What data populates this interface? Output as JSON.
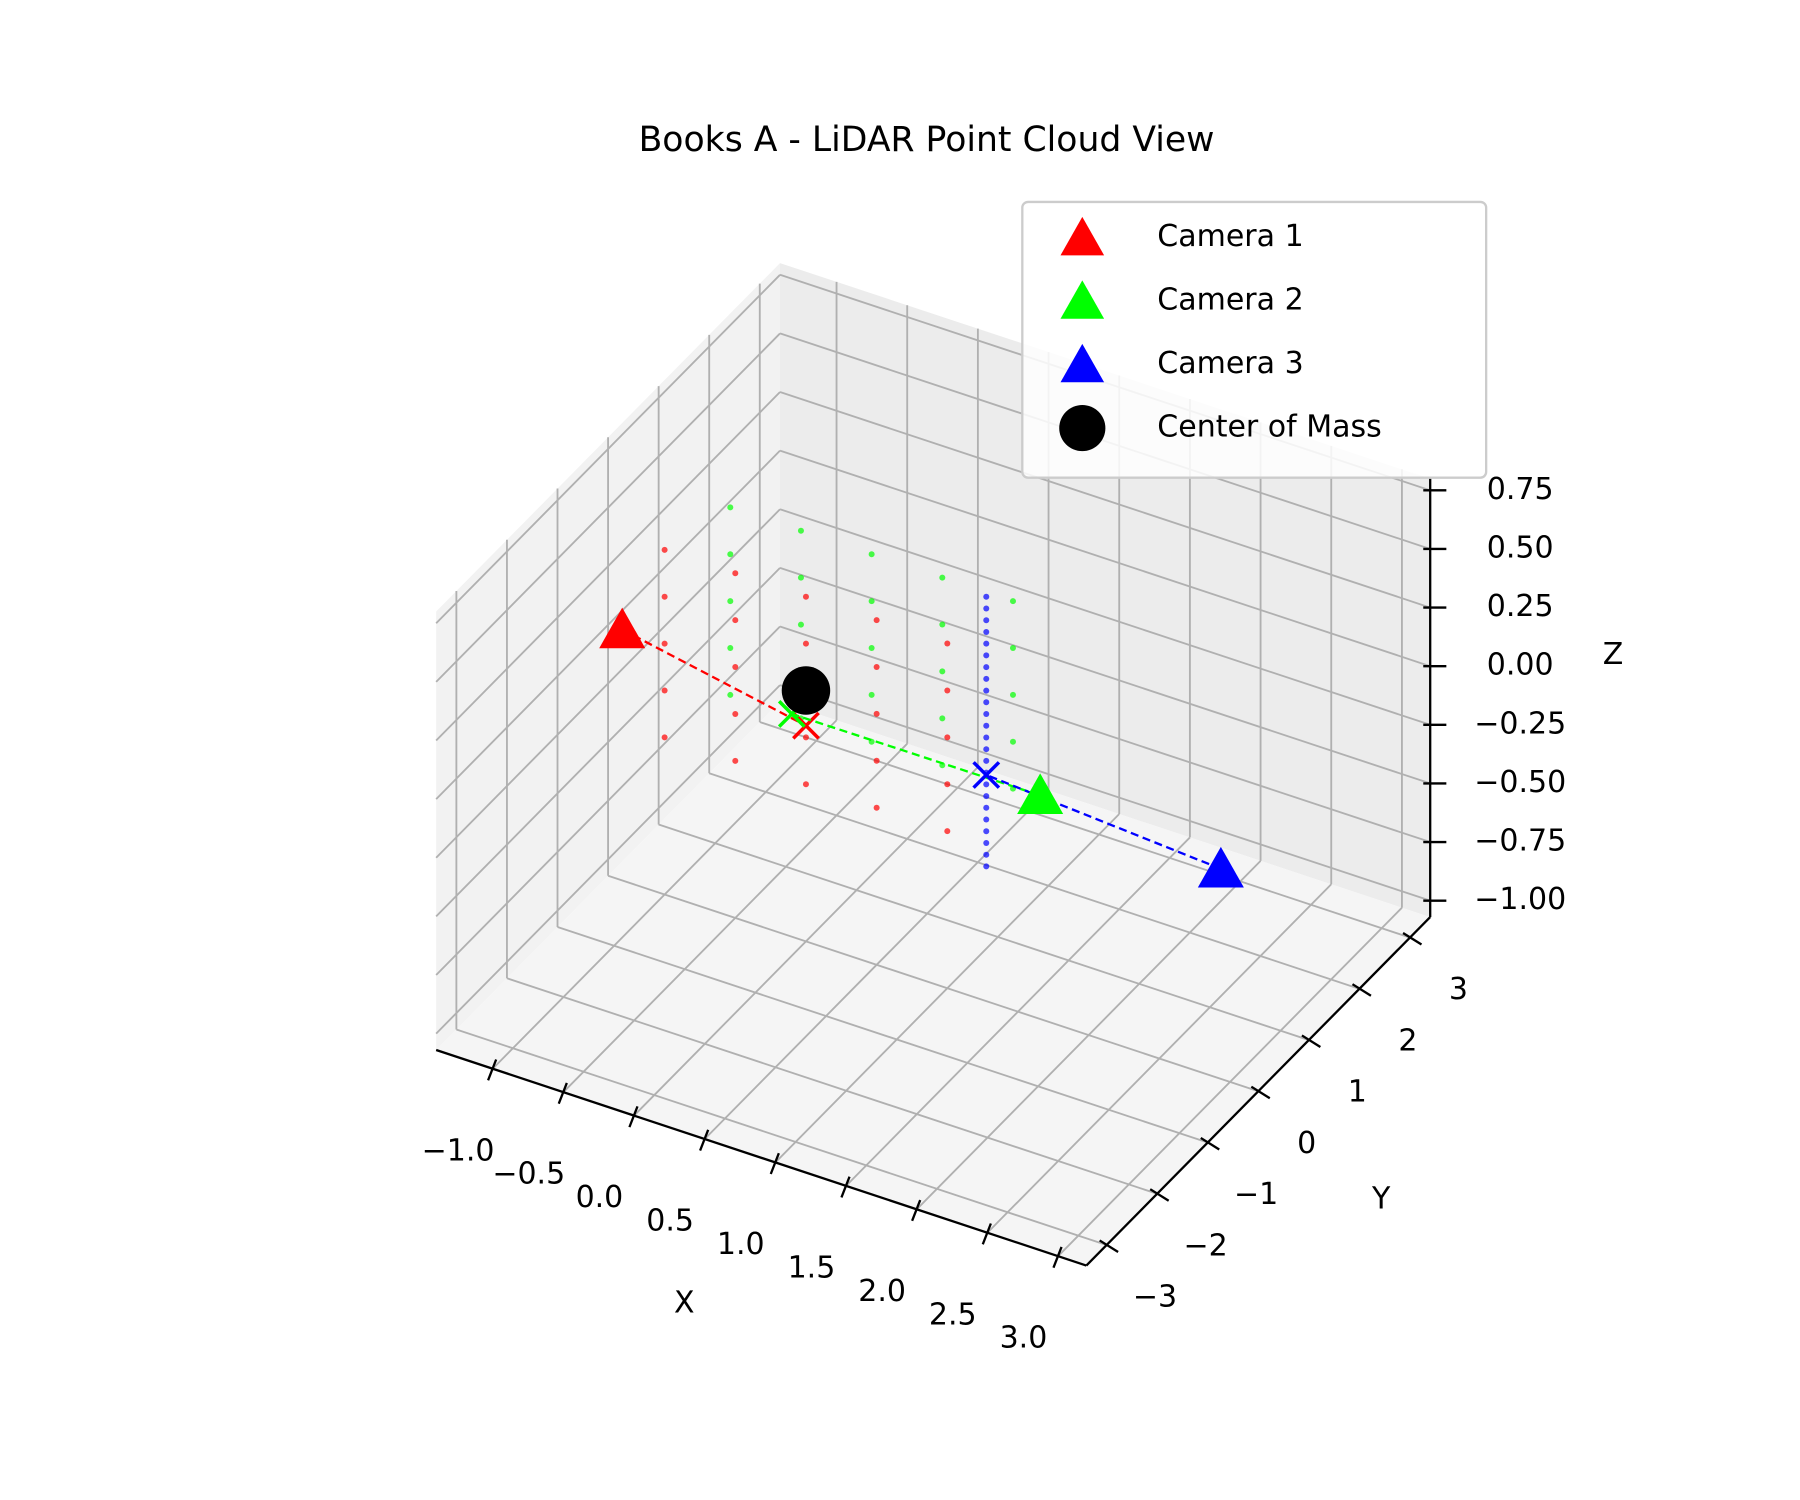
{
  "chart_data": {
    "type": "scatter3d",
    "title": "Books A - LiDAR Point Cloud View",
    "xlabel": "X",
    "ylabel": "Y",
    "zlabel": "Z",
    "xlim": [
      -1.4,
      3.2
    ],
    "ylim": [
      -3.4,
      3.4
    ],
    "zlim": [
      -1.07,
      0.8
    ],
    "xticks": [
      {
        "value": -1,
        "label": "−1.0"
      },
      {
        "value": -0.5,
        "label": "−0.5"
      },
      {
        "value": 0,
        "label": "0.0"
      },
      0.5,
      {
        "value": 1,
        "label": "1.0"
      },
      1.5,
      {
        "value": 2,
        "label": "2.0"
      },
      2.5,
      {
        "value": 3,
        "label": "3.0"
      }
    ],
    "yticks": [
      {
        "value": -3,
        "label": "−3"
      },
      {
        "value": -2,
        "label": "−2"
      },
      {
        "value": -1,
        "label": "−1"
      },
      0,
      1,
      2,
      3
    ],
    "zticks": [
      {
        "value": -1,
        "label": "−1.00"
      },
      {
        "value": -0.75,
        "label": "−0.75"
      },
      {
        "value": -0.5,
        "label": "−0.50"
      },
      {
        "value": -0.25,
        "label": "−0.25"
      },
      {
        "value": 0,
        "label": "0.00"
      },
      {
        "value": 0.25,
        "label": "0.25"
      },
      {
        "value": 0.5,
        "label": "0.50"
      },
      0.75
    ],
    "grid": true,
    "legend": "upper right",
    "series": [
      {
        "name": "Camera 1",
        "color": "#ff0000",
        "marker": "triangle",
        "x": [
          -1.3
        ],
        "y": [
          0
        ],
        "z": [
          0
        ],
        "hit": {
          "x": 0,
          "y": 0,
          "z": -0.15
        }
      },
      {
        "name": "Camera 2",
        "color": "#00ff00",
        "marker": "triangle",
        "x": [
          1.8
        ],
        "y": [
          -0.4
        ],
        "z": [
          0
        ],
        "hit": {
          "x": -0.1,
          "y": 0,
          "z": -0.12
        }
      },
      {
        "name": "Camera 3",
        "color": "#0000ff",
        "marker": "triangle",
        "x": [
          3.15
        ],
        "y": [
          -0.6
        ],
        "z": [
          0
        ],
        "hit": {
          "x": 0.9,
          "y": 1.05,
          "z": -0.41
        }
      },
      {
        "name": "Center of Mass",
        "color": "#000000",
        "marker": "circle",
        "x": [
          0
        ],
        "y": [
          0
        ],
        "z": [
          0
        ]
      }
    ],
    "point_clouds": [
      {
        "color": "#ff0000",
        "x": [
          -1,
          -0.5,
          0,
          0.5,
          1,
          -1,
          -0.5,
          0,
          0.5,
          1,
          -1,
          -0.5,
          0,
          0.5,
          1,
          -1,
          -0.5,
          0,
          0.5,
          1,
          -1,
          -0.5,
          0,
          0.5,
          1
        ],
        "y": [
          0,
          0,
          0,
          0,
          0,
          0,
          0,
          0,
          0,
          0,
          0,
          0,
          0,
          0,
          0,
          0,
          0,
          0,
          0,
          0,
          0,
          0,
          0,
          0,
          0
        ],
        "z": [
          -0.4,
          -0.4,
          -0.4,
          -0.4,
          -0.4,
          -0.2,
          -0.2,
          -0.2,
          -0.2,
          -0.2,
          0,
          0,
          0,
          0,
          0,
          0.2,
          0.2,
          0.2,
          0.2,
          0.2,
          0.4,
          0.4,
          0.4,
          0.4,
          0.4
        ]
      },
      {
        "color": "#00ff00",
        "x": [
          -0.75,
          -0.25,
          0.25,
          0.75,
          1.25,
          -0.75,
          -0.25,
          0.25,
          0.75,
          1.25,
          -0.75,
          -0.25,
          0.25,
          0.75,
          1.25,
          -0.75,
          -0.25,
          0.25,
          0.75,
          1.25,
          -0.75,
          -0.25,
          0.25,
          0.75,
          1.25
        ],
        "y": [
          0.6,
          0.6,
          0.6,
          0.6,
          0.6,
          0.6,
          0.6,
          0.6,
          0.6,
          0.6,
          0.6,
          0.6,
          0.6,
          0.6,
          0.6,
          0.6,
          0.6,
          0.6,
          0.6,
          0.6,
          0.6,
          0.6,
          0.6,
          0.6,
          0.6
        ],
        "z": [
          -0.3,
          -0.3,
          -0.3,
          -0.3,
          -0.3,
          -0.1,
          -0.1,
          -0.1,
          -0.1,
          -0.1,
          0.1,
          0.1,
          0.1,
          0.1,
          0.1,
          0.3,
          0.3,
          0.3,
          0.3,
          0.3,
          0.5,
          0.5,
          0.5,
          0.5,
          0.5
        ]
      },
      {
        "color": "#0000ff",
        "x": [
          0.9,
          0.9,
          0.9,
          0.9,
          0.9,
          0.9,
          0.9,
          0.9,
          0.9,
          0.9,
          0.9,
          0.9,
          0.9,
          0.9,
          0.9,
          0.9,
          0.9,
          0.9,
          0.9,
          0.9,
          0.9,
          0.9,
          0.9,
          0.9
        ],
        "y": [
          1.05,
          1.05,
          1.05,
          1.05,
          1.05,
          1.05,
          1.05,
          1.05,
          1.05,
          1.05,
          1.05,
          1.05,
          1.05,
          1.05,
          1.05,
          1.05,
          1.05,
          1.05,
          1.05,
          1.05,
          1.05,
          1.05,
          1.05,
          1.05
        ],
        "z": [
          -0.8,
          -0.75,
          -0.7,
          -0.65,
          -0.6,
          -0.55,
          -0.5,
          -0.45,
          -0.4,
          -0.35,
          -0.3,
          -0.25,
          -0.2,
          -0.15,
          -0.1,
          -0.05,
          0,
          0.05,
          0.1,
          0.15,
          0.2,
          0.25,
          0.3,
          0.35
        ]
      }
    ]
  }
}
